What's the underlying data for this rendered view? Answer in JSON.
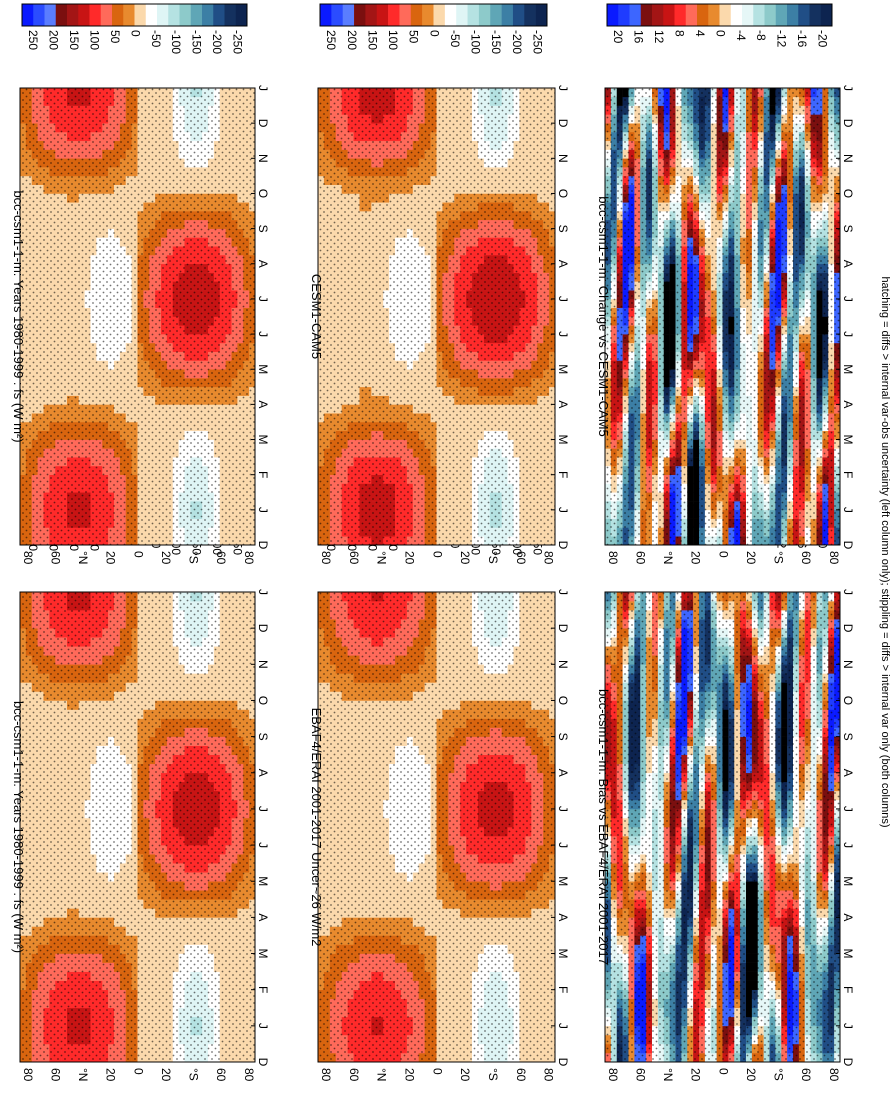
{
  "footnote": "hatching = diffs > internal var-obs uncertainty (left column only); stippling = diffs > internal var only (both columns)",
  "months": [
    "D",
    "J",
    "F",
    "M",
    "A",
    "M",
    "J",
    "J",
    "A",
    "S",
    "O",
    "N",
    "D",
    "J"
  ],
  "lat_ticks": [
    "80",
    "60",
    "°N",
    "20",
    "0",
    "20",
    "°S",
    "60",
    "80"
  ],
  "chart_data": [
    {
      "type": "heatmap",
      "id": "p1",
      "title": "bcc-csm1-1-m: Years 1980-1999 : fs (W m²)",
      "x": [
        "D",
        "J",
        "F",
        "M",
        "A",
        "M",
        "J",
        "J",
        "A",
        "S",
        "O",
        "N",
        "D",
        "J"
      ],
      "y": [
        "80",
        "60",
        "°N",
        "20",
        "0",
        "20",
        "°S",
        "60",
        "80"
      ],
      "colorbar": [
        "250",
        "200",
        "150",
        "100",
        "50",
        "0",
        "-50",
        "-100",
        "-150",
        "-200",
        "-250"
      ],
      "levels": [
        250,
        200,
        150,
        100,
        50,
        0,
        -50,
        -100,
        -150,
        -200,
        -250
      ],
      "stippled": true,
      "hatched": true
    },
    {
      "type": "heatmap",
      "id": "p2",
      "title": "bcc-csm1-1-m: Years 1980-1999 : fs (W m²)",
      "x": [
        "D",
        "J",
        "F",
        "M",
        "A",
        "M",
        "J",
        "J",
        "A",
        "S",
        "O",
        "N",
        "D",
        "J"
      ],
      "y": [
        "80",
        "60",
        "°N",
        "20",
        "0",
        "20",
        "°S",
        "60",
        "80"
      ],
      "colorbar": [
        "250",
        "200",
        "150",
        "100",
        "50",
        "0",
        "-50",
        "-100",
        "-150",
        "-200",
        "-250"
      ],
      "levels": [
        250,
        200,
        150,
        100,
        50,
        0,
        -50,
        -100,
        -150,
        -200,
        -250
      ],
      "stippled": true,
      "hatched": false
    },
    {
      "type": "heatmap",
      "id": "p3",
      "title": "EBAF4/ERAI 2001-2017 Uncer~26 W/m2",
      "x": [
        "D",
        "J",
        "F",
        "M",
        "A",
        "M",
        "J",
        "J",
        "A",
        "S",
        "O",
        "N",
        "D",
        "J"
      ],
      "y": [
        "80",
        "60",
        "°N",
        "20",
        "0",
        "20",
        "°S",
        "60",
        "80"
      ],
      "colorbar": [
        "250",
        "200",
        "150",
        "100",
        "50",
        "0",
        "-50",
        "-100",
        "-150",
        "-200",
        "-250"
      ],
      "levels": [
        250,
        200,
        150,
        100,
        50,
        0,
        -50,
        -100,
        -150,
        -200,
        -250
      ],
      "stippled": true,
      "hatched": true
    },
    {
      "type": "heatmap",
      "id": "p4",
      "title": "CESM1-CAM5",
      "x": [
        "D",
        "J",
        "F",
        "M",
        "A",
        "M",
        "J",
        "J",
        "A",
        "S",
        "O",
        "N",
        "D",
        "J"
      ],
      "y": [
        "80",
        "60",
        "°N",
        "20",
        "0",
        "20",
        "°S",
        "60",
        "80"
      ],
      "colorbar": [
        "250",
        "200",
        "150",
        "100",
        "50",
        "0",
        "-50",
        "-100",
        "-150",
        "-200",
        "-250"
      ],
      "levels": [
        250,
        200,
        150,
        100,
        50,
        0,
        -50,
        -100,
        -150,
        -200,
        -250
      ],
      "stippled": true,
      "hatched": false
    },
    {
      "type": "heatmap",
      "id": "p5",
      "title": "bcc-csm1-1-m: Bias vs EBAF4/ERAI 2001-2017",
      "x": [
        "D",
        "J",
        "F",
        "M",
        "A",
        "M",
        "J",
        "J",
        "A",
        "S",
        "O",
        "N",
        "D",
        "J"
      ],
      "y": [
        "80",
        "60",
        "°N",
        "20",
        "0",
        "20",
        "°S",
        "60",
        "80"
      ],
      "colorbar": [
        "20",
        "16",
        "12",
        "8",
        "4",
        "0",
        "-4",
        "-8",
        "-12",
        "-16",
        "-20"
      ],
      "levels": [
        20,
        16,
        12,
        8,
        4,
        0,
        -4,
        -8,
        -12,
        -16,
        -20
      ],
      "stippled": true,
      "hatched": false
    },
    {
      "type": "heatmap",
      "id": "p6",
      "title": "bcc-csm1-1-m: Change vs CESM1-CAM5",
      "x": [
        "D",
        "J",
        "F",
        "M",
        "A",
        "M",
        "J",
        "J",
        "A",
        "S",
        "O",
        "N",
        "D",
        "J"
      ],
      "y": [
        "80",
        "60",
        "°N",
        "20",
        "0",
        "20",
        "°S",
        "60",
        "80"
      ],
      "colorbar": [
        "20",
        "16",
        "12",
        "8",
        "4",
        "0",
        "-4",
        "-8",
        "-12",
        "-16",
        "-20"
      ],
      "levels": [
        20,
        16,
        12,
        8,
        4,
        0,
        -4,
        -8,
        -12,
        -16,
        -20
      ],
      "stippled": true,
      "hatched": false
    }
  ],
  "colors": {
    "palette": [
      "#0a1aff",
      "#2b4cff",
      "#5a7dff",
      "#7b0f0f",
      "#c81414",
      "#ff2a2a",
      "#ff5a5a",
      "#ff8a8a",
      "#d9650f",
      "#e88a2e",
      "#f4b36b",
      "#fbd9ac",
      "#ffffff",
      "#dff5f5",
      "#b5e2e2",
      "#8dcaca",
      "#5fa6b6",
      "#3c7fa5",
      "#204e86",
      "#0d2450",
      "#000000"
    ],
    "low_band": "#0000ff"
  }
}
